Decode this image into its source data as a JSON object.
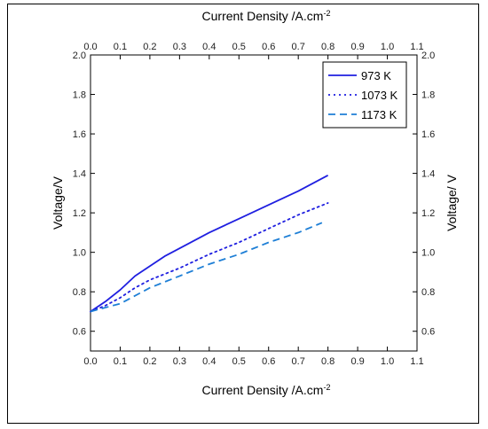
{
  "chart_data": {
    "type": "line",
    "xlabel_bottom": "Current Density /A.cm",
    "xlabel_top": "Current Density /A.cm",
    "xlabel_superscript": "-2",
    "ylabel_left": "Voltage/V",
    "ylabel_right": "Voltage/ V",
    "xlim": [
      0.0,
      1.1
    ],
    "ylim": [
      0.5,
      2.0
    ],
    "x_ticks": [
      0.0,
      0.1,
      0.2,
      0.3,
      0.4,
      0.5,
      0.6,
      0.7,
      0.8,
      0.9,
      1.0,
      1.1
    ],
    "x_tick_labels": [
      "0.0",
      "0.1",
      "0.2",
      "0.3",
      "0.4",
      "0.5",
      "0.6",
      "0.7",
      "0.8",
      "0.9",
      "1.0",
      "1.1"
    ],
    "y_ticks": [
      0.6,
      0.8,
      1.0,
      1.2,
      1.4,
      1.6,
      1.8,
      2.0
    ],
    "y_tick_labels": [
      "0.6",
      "0.8",
      "1.0",
      "1.2",
      "1.4",
      "1.6",
      "1.8",
      "2.0"
    ],
    "grid": false,
    "legend_position": "top-right",
    "series": [
      {
        "name": "973 K",
        "style": "solid",
        "color": "#1f1fe0",
        "x": [
          0.0,
          0.05,
          0.1,
          0.15,
          0.2,
          0.25,
          0.3,
          0.4,
          0.5,
          0.6,
          0.7,
          0.8
        ],
        "y": [
          0.7,
          0.75,
          0.81,
          0.88,
          0.93,
          0.98,
          1.02,
          1.1,
          1.17,
          1.24,
          1.31,
          1.39
        ]
      },
      {
        "name": "1073 K",
        "style": "dotted",
        "color": "#1f1fe0",
        "x": [
          0.0,
          0.05,
          0.1,
          0.15,
          0.2,
          0.3,
          0.4,
          0.5,
          0.6,
          0.7,
          0.8
        ],
        "y": [
          0.7,
          0.73,
          0.77,
          0.82,
          0.86,
          0.92,
          0.99,
          1.05,
          1.12,
          1.19,
          1.25
        ]
      },
      {
        "name": "1173 K",
        "style": "dashed",
        "color": "#1e7fd6",
        "x": [
          0.0,
          0.05,
          0.1,
          0.2,
          0.3,
          0.4,
          0.5,
          0.6,
          0.7,
          0.78
        ],
        "y": [
          0.7,
          0.72,
          0.74,
          0.82,
          0.88,
          0.94,
          0.99,
          1.05,
          1.1,
          1.15
        ]
      }
    ]
  }
}
